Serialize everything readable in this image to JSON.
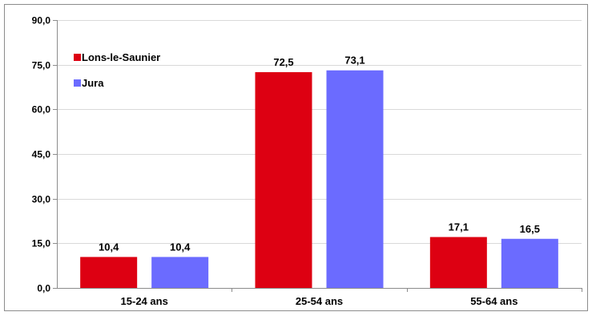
{
  "chart_data": {
    "type": "bar",
    "categories": [
      "15-24 ans",
      "25-54 ans",
      "55-64 ans"
    ],
    "series": [
      {
        "name": "Lons-le-Saunier",
        "values": [
          10.4,
          72.5,
          17.1
        ],
        "labels": [
          "10,4",
          "72,5",
          "17,1"
        ],
        "color": "#dd0012"
      },
      {
        "name": "Jura",
        "values": [
          10.4,
          73.1,
          16.5
        ],
        "labels": [
          "10,4",
          "73,1",
          "16,5"
        ],
        "color": "#6b6bff"
      }
    ],
    "ylim": [
      0,
      90
    ],
    "yticks": [
      0,
      15,
      30,
      45,
      60,
      75,
      90
    ],
    "ytick_labels": [
      "0,0",
      "15,0",
      "30,0",
      "45,0",
      "60,0",
      "75,0",
      "90,0"
    ],
    "grid": true,
    "legend_position": "top-left",
    "title": "",
    "xlabel": "",
    "ylabel": ""
  }
}
